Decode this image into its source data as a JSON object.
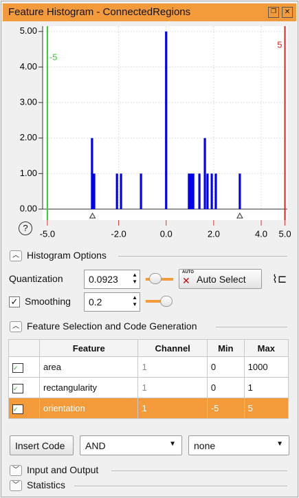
{
  "window": {
    "title": "Feature Histogram - ConnectedRegions"
  },
  "chart_data": {
    "type": "bar",
    "x": [
      -3.12,
      -3.03,
      -2.07,
      -1.9,
      -1.06,
      0.0,
      0.96,
      1.05,
      1.14,
      1.4,
      1.63,
      1.74,
      1.92,
      2.09,
      3.1
    ],
    "values": [
      2,
      1,
      1,
      1,
      1,
      5,
      1,
      1,
      1,
      1,
      2,
      1,
      1,
      1,
      1
    ],
    "color": "#0000ee",
    "xlim": [
      -5.2,
      5.1
    ],
    "ylim": [
      0,
      5.15
    ],
    "xticks": [
      {
        "value": -5,
        "label": "-5.0"
      },
      {
        "value": -2,
        "label": "-2.0"
      },
      {
        "value": 0,
        "label": "0.0"
      },
      {
        "value": 2,
        "label": "2.0"
      },
      {
        "value": 4,
        "label": "4.0"
      },
      {
        "value": 5,
        "label": "5.0"
      }
    ],
    "yticks": [
      {
        "value": 0,
        "label": "0.00"
      },
      {
        "value": 1,
        "label": "1.00"
      },
      {
        "value": 2,
        "label": "2.00"
      },
      {
        "value": 3,
        "label": "3.00"
      },
      {
        "value": 4,
        "label": "4.00"
      },
      {
        "value": 5,
        "label": "5.00"
      }
    ],
    "grid": true,
    "lower_threshold": {
      "value": -5,
      "color": "#33cc33"
    },
    "upper_threshold": {
      "value": 5,
      "color": "#e02020"
    },
    "markers": [
      -3.1,
      3.1
    ]
  },
  "help_icon": "?",
  "histogram_options": {
    "title": "Histogram Options",
    "quantization_label": "Quantization",
    "quantization_value": "0.0923",
    "auto_select_icon": "AUTO",
    "auto_select": "Auto Select",
    "smoothing_label": "Smoothing",
    "smoothing_value": "0.2"
  },
  "feature_selection": {
    "title": "Feature Selection and Code Generation",
    "table": {
      "columns": [
        "Feature",
        "Channel",
        "Min",
        "Max"
      ],
      "rows": [
        [
          "area",
          "1",
          "0",
          "1000"
        ],
        [
          "rectangularity",
          "1",
          "0",
          "1"
        ],
        [
          "orientation",
          "1",
          "-5",
          "5"
        ]
      ],
      "selected_row": 2
    },
    "insert_code": "Insert Code",
    "operator": "AND",
    "target": "none"
  },
  "sections": [
    "Input and Output",
    "Statistics"
  ]
}
